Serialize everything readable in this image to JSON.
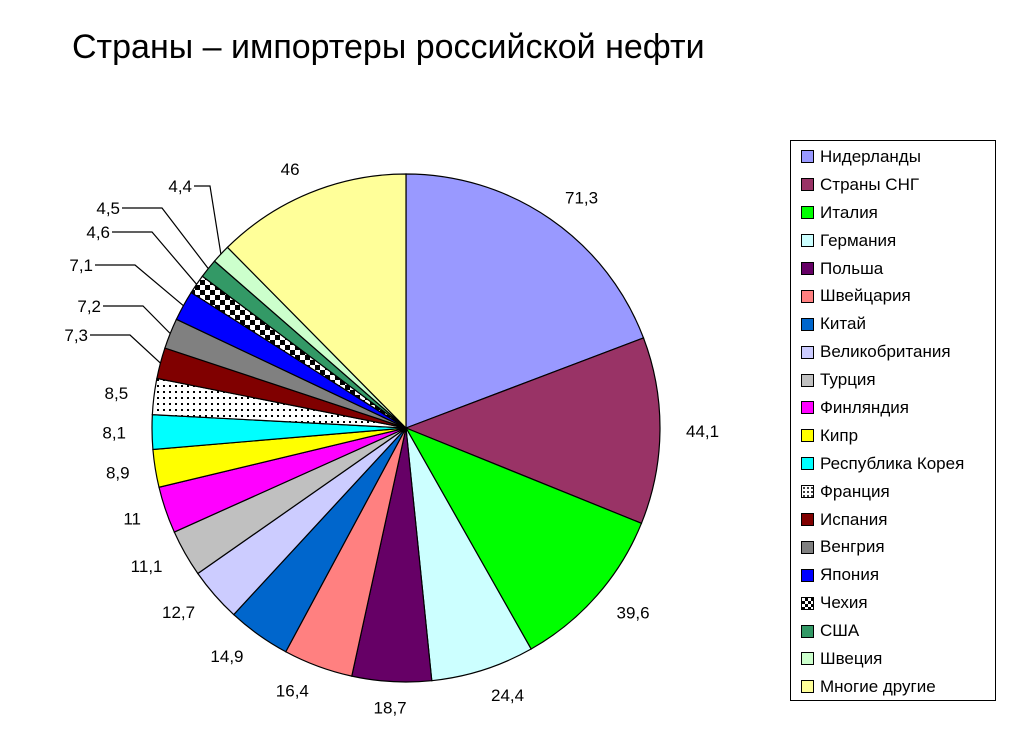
{
  "title": "Страны – импортеры российской нефти",
  "chart_data": {
    "type": "pie",
    "title": "Страны – импортеры российской нефти",
    "slices": [
      {
        "label": "Нидерланды",
        "value": 71.3,
        "display": "71,3",
        "color": "#9999ff",
        "pattern": "solid"
      },
      {
        "label": "Страны СНГ",
        "value": 44.1,
        "display": "44,1",
        "color": "#993366",
        "pattern": "solid"
      },
      {
        "label": "Италия",
        "value": 39.6,
        "display": "39,6",
        "color": "#00ff00",
        "pattern": "solid"
      },
      {
        "label": "Германия",
        "value": 24.4,
        "display": "24,4",
        "color": "#ccffff",
        "pattern": "solid"
      },
      {
        "label": "Польша",
        "value": 18.7,
        "display": "18,7",
        "color": "#660066",
        "pattern": "solid"
      },
      {
        "label": "Швейцария",
        "value": 16.4,
        "display": "16,4",
        "color": "#ff8080",
        "pattern": "solid"
      },
      {
        "label": "Китай",
        "value": 14.9,
        "display": "14,9",
        "color": "#0066cc",
        "pattern": "solid"
      },
      {
        "label": "Великобритания",
        "value": 12.7,
        "display": "12,7",
        "color": "#ccccff",
        "pattern": "solid"
      },
      {
        "label": "Турция",
        "value": 11.1,
        "display": "11,1",
        "color": "#c0c0c0",
        "pattern": "solid"
      },
      {
        "label": "Финляндия",
        "value": 11,
        "display": "11",
        "color": "#ff00ff",
        "pattern": "solid"
      },
      {
        "label": "Кипр",
        "value": 8.9,
        "display": "8,9",
        "color": "#ffff00",
        "pattern": "solid"
      },
      {
        "label": "Республика Корея",
        "value": 8.1,
        "display": "8,1",
        "color": "#00ffff",
        "pattern": "solid"
      },
      {
        "label": "Франция",
        "value": 8.5,
        "display": "8,5",
        "color": "#ffffff",
        "pattern": "dots"
      },
      {
        "label": "Испания",
        "value": 7.3,
        "display": "7,3",
        "color": "#800000",
        "pattern": "solid"
      },
      {
        "label": "Венгрия",
        "value": 7.2,
        "display": "7,2",
        "color": "#808080",
        "pattern": "solid"
      },
      {
        "label": "Япония",
        "value": 7.1,
        "display": "7,1",
        "color": "#0000ff",
        "pattern": "solid"
      },
      {
        "label": "Чехия",
        "value": 4.6,
        "display": "4,6",
        "color": "#000000",
        "pattern": "checker"
      },
      {
        "label": "США",
        "value": 4.5,
        "display": "4,5",
        "color": "#339966",
        "pattern": "solid"
      },
      {
        "label": "Швеция",
        "value": 4.4,
        "display": "4,4",
        "color": "#ccffcc",
        "pattern": "solid"
      },
      {
        "label": "Многие другие",
        "value": 46,
        "display": "46",
        "color": "#ffff99",
        "pattern": "solid"
      }
    ],
    "legend_placement": "right"
  }
}
